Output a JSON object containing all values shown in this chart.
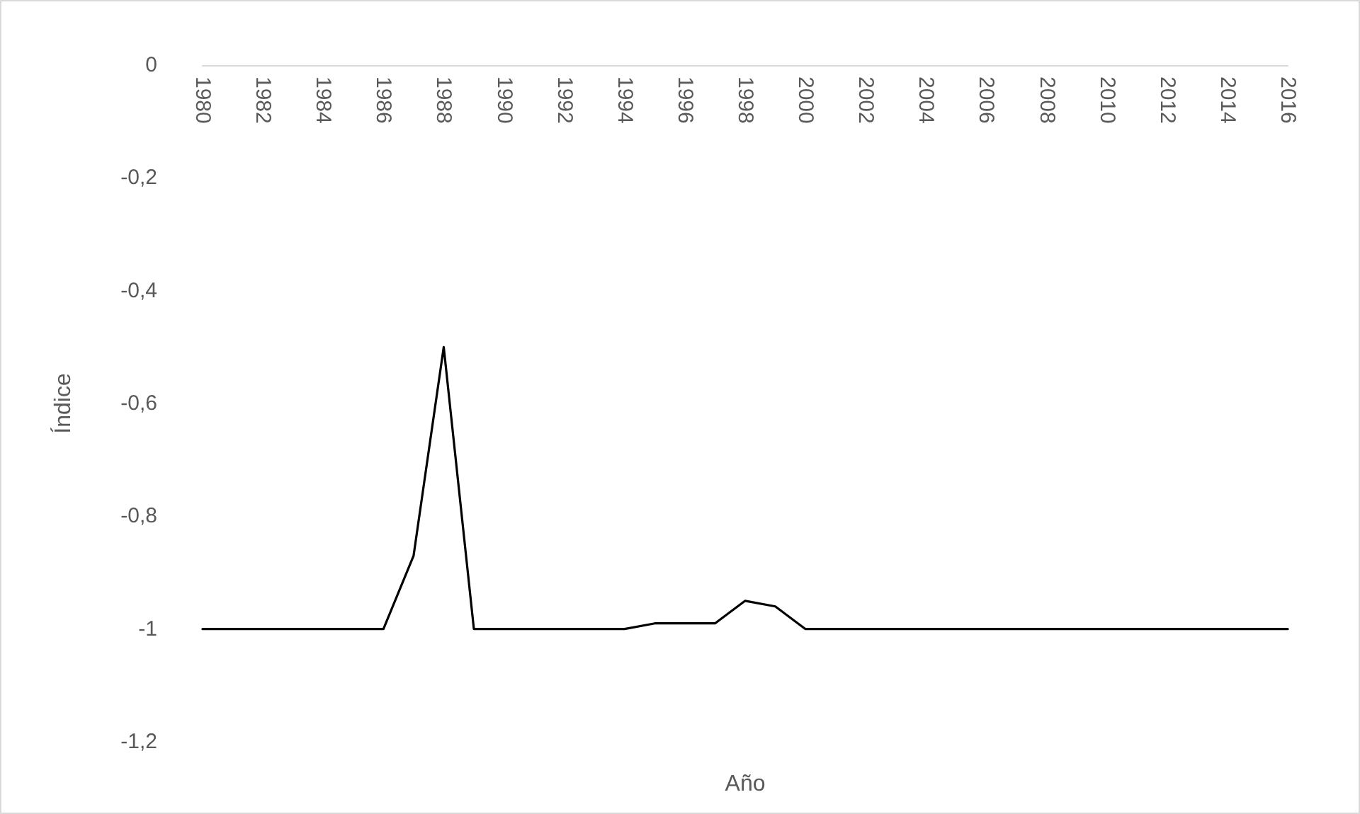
{
  "chart_data": {
    "type": "line",
    "xlabel": "Año",
    "ylabel": "Índice",
    "categories": [
      "1980",
      null,
      "1982",
      null,
      "1984",
      null,
      "1986",
      null,
      "1988",
      null,
      "1990",
      null,
      "1992",
      null,
      "1994",
      null,
      "1996",
      null,
      "1998",
      null,
      "2000",
      null,
      "2002",
      null,
      "2004",
      null,
      "2006",
      null,
      "2008",
      null,
      "2010",
      null,
      "2012",
      null,
      "2014",
      null,
      "2016"
    ],
    "series": [
      {
        "color": "#000000",
        "values": [
          -1,
          -1,
          -1,
          -1,
          -1,
          -1,
          -1,
          -0.87,
          -0.5,
          -1,
          -1,
          -1,
          -1,
          -1,
          -1,
          -0.99,
          -0.99,
          -0.99,
          -0.95,
          -0.96,
          -1,
          -1,
          -1,
          -1,
          -1,
          -1,
          -1,
          -1,
          -1,
          -1,
          -1,
          -1,
          -1,
          -1,
          -1,
          -1,
          -1
        ]
      }
    ],
    "ylim": [
      -1.2,
      0
    ],
    "yticks": [
      {
        "value": 0,
        "label": "0"
      },
      {
        "value": -0.2,
        "label": "-0,2"
      },
      {
        "value": -0.4,
        "label": "-0,4"
      },
      {
        "value": -0.6,
        "label": "-0,6"
      },
      {
        "value": -0.8,
        "label": "-0,8"
      },
      {
        "value": -1,
        "label": "-1"
      },
      {
        "value": -1.2,
        "label": "-1,2"
      }
    ],
    "grid": false,
    "marker": "none",
    "line_style": "solid"
  }
}
